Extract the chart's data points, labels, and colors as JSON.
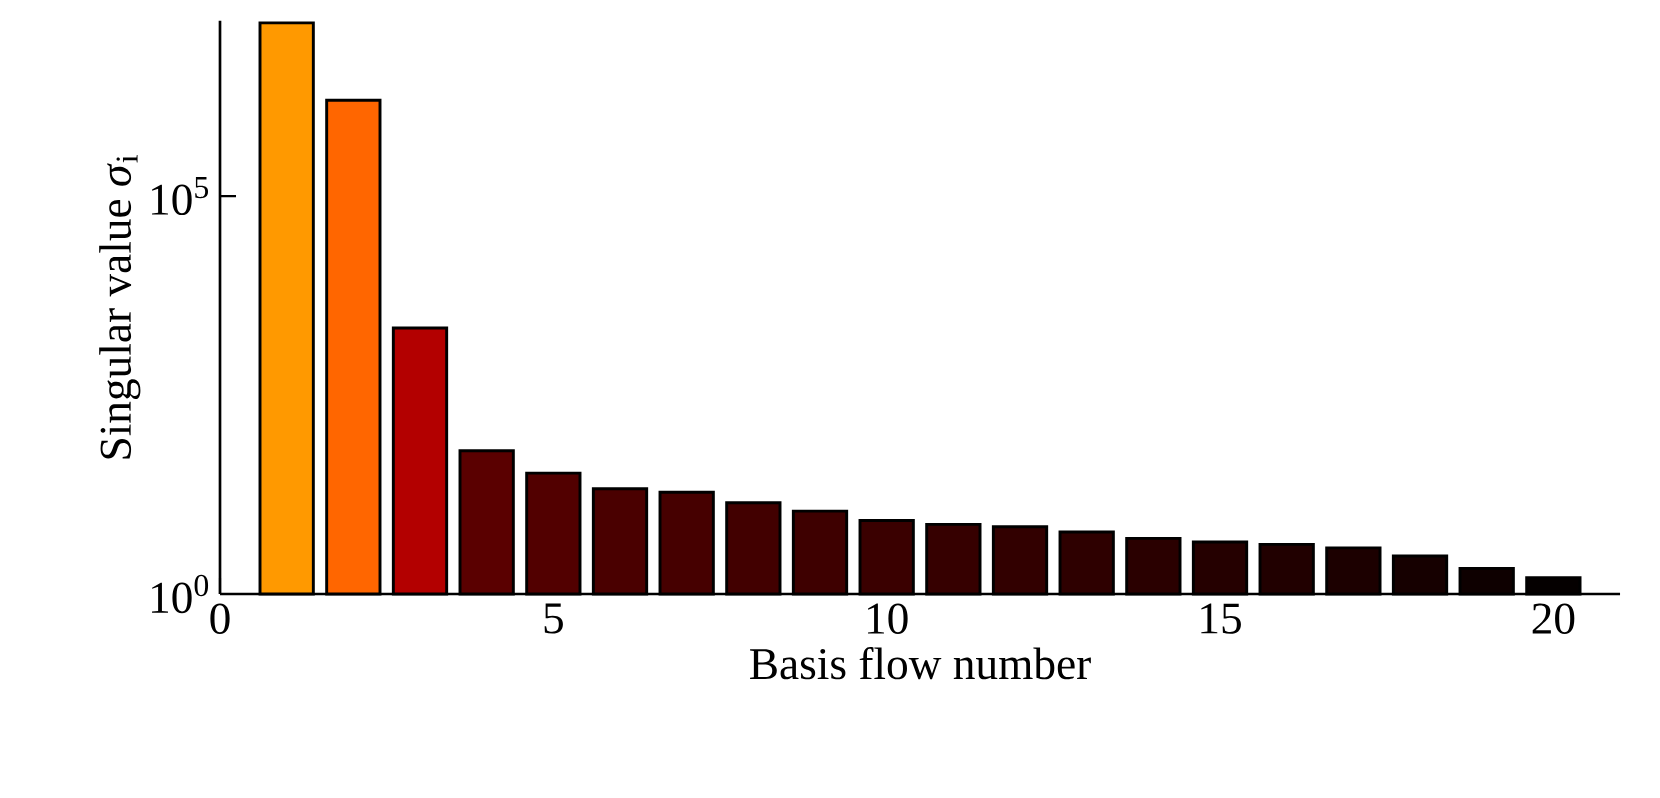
{
  "chart_data": {
    "type": "bar",
    "xlabel": "Basis flow number",
    "ylabel": "Singular value *σ*$_{i}$",
    "x": [
      1,
      2,
      3,
      4,
      5,
      6,
      7,
      8,
      9,
      10,
      11,
      12,
      13,
      14,
      15,
      16,
      17,
      18,
      19,
      20
    ],
    "values": [
      15000000,
      1600000,
      2200,
      63,
      33,
      21,
      19,
      14,
      11,
      8.4,
      7.5,
      7,
      6,
      5,
      4.5,
      4.2,
      3.8,
      3,
      2.1,
      1.6
    ],
    "colors": [
      "#ff9900",
      "#ff6600",
      "#b30000",
      "#5a0000",
      "#520000",
      "#4a0000",
      "#460000",
      "#420000",
      "#3e0000",
      "#3a0000",
      "#360000",
      "#320000",
      "#2e0000",
      "#2a0000",
      "#250000",
      "#210000",
      "#1c0000",
      "#160000",
      "#0e0000",
      "#050000"
    ],
    "xlim": [
      0,
      21
    ],
    "xticks": [
      0,
      5,
      10,
      15,
      20
    ],
    "ylim": [
      1,
      16000000
    ],
    "yticks": [
      {
        "value": 1,
        "label": "10$^{0}$"
      },
      {
        "value": 100000,
        "label": "10$^{5}$"
      }
    ],
    "log": "y"
  }
}
